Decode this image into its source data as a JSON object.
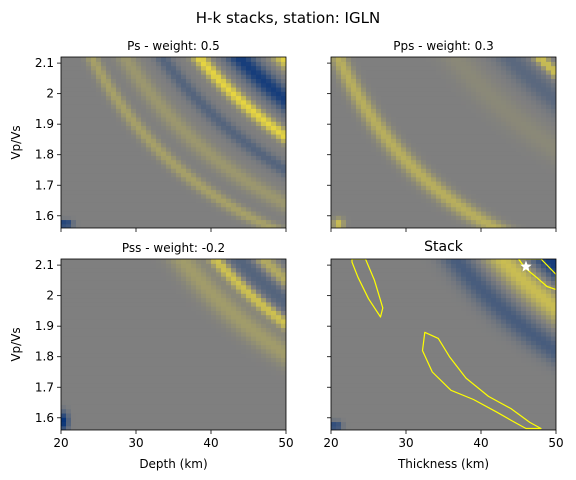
{
  "figure": {
    "title": "H-k stacks, station: IGLN"
  },
  "colors": {
    "low": "#03317a",
    "mid": "#7f7f7f",
    "high": "#f2df3a",
    "contour": "#ffff00",
    "star": "#ffffff"
  },
  "chart_data": [
    {
      "id": "ps",
      "type": "heatmap",
      "title": "Ps - weight: 0.5",
      "xlabel": "",
      "ylabel": "Vp/Vs",
      "xlim": [
        20,
        50
      ],
      "ylim": [
        1.56,
        2.12
      ],
      "xticks": [
        20,
        30,
        40,
        50
      ],
      "yticks": [
        1.6,
        1.7,
        1.8,
        1.9,
        2.0,
        2.1
      ],
      "show_xticklabels": false,
      "show_yticklabels": true,
      "bands": [
        {
          "c": 43.0,
          "w": 1.2,
          "amp": 0.9
        },
        {
          "c": 55.5,
          "w": 1.6,
          "amp": 0.85
        },
        {
          "c": 37.5,
          "w": 1.3,
          "amp": -0.35
        },
        {
          "c": 49.0,
          "w": 2.2,
          "amp": -0.85
        },
        {
          "c": 32.0,
          "w": 1.5,
          "amp": 0.25
        },
        {
          "c": 62.5,
          "w": 2.4,
          "amp": -0.5
        },
        {
          "c": 27.0,
          "w": 1.0,
          "amp": 0.35
        }
      ],
      "spots": [
        {
          "x": 20.6,
          "y": 1.575,
          "rx": 0.9,
          "ry": 0.012,
          "amp": -1.0
        }
      ],
      "contours": [],
      "markers": []
    },
    {
      "id": "pps",
      "type": "heatmap",
      "title": "Pps - weight: 0.3",
      "xlabel": "",
      "ylabel": "",
      "xlim": [
        20,
        50
      ],
      "ylim": [
        1.56,
        2.12
      ],
      "xticks": [
        20,
        30,
        40,
        50
      ],
      "yticks": [
        1.6,
        1.7,
        1.8,
        1.9,
        2.0,
        2.1
      ],
      "show_xticklabels": false,
      "show_yticklabels": false,
      "bands": [
        {
          "c": 53.5,
          "w": 1.1,
          "amp": 0.7
        },
        {
          "c": 49.0,
          "w": 2.5,
          "amp": -0.3
        },
        {
          "c": 59.0,
          "w": 2.5,
          "amp": -0.35
        },
        {
          "c": 41.0,
          "w": 2.5,
          "amp": 0.1
        },
        {
          "c": 66.0,
          "w": 3.0,
          "amp": -0.25
        },
        {
          "c": 23.5,
          "w": 1.2,
          "amp": 0.5
        }
      ],
      "spots": [
        {
          "x": 21.0,
          "y": 1.575,
          "rx": 0.7,
          "ry": 0.018,
          "amp": 0.7
        }
      ],
      "contours": [],
      "markers": []
    },
    {
      "id": "pss",
      "type": "heatmap",
      "title": "Pss - weight: -0.2",
      "xlabel": "Depth (km)",
      "ylabel": "Vp/Vs",
      "xlim": [
        20,
        50
      ],
      "ylim": [
        1.56,
        2.12
      ],
      "xticks": [
        20,
        30,
        40,
        50
      ],
      "yticks": [
        1.6,
        1.7,
        1.8,
        1.9,
        2.0,
        2.1
      ],
      "show_xticklabels": true,
      "show_yticklabels": true,
      "bands": [
        {
          "c": 45.5,
          "w": 1.2,
          "amp": 0.75
        },
        {
          "c": 52.5,
          "w": 1.5,
          "amp": 0.5
        },
        {
          "c": 40.5,
          "w": 2.2,
          "amp": 0.3
        },
        {
          "c": 49.0,
          "w": 2.5,
          "amp": -0.35
        },
        {
          "c": 57.0,
          "w": 2.0,
          "amp": -0.25
        },
        {
          "c": 66.0,
          "w": 1.3,
          "amp": 0.7
        },
        {
          "c": 62.0,
          "w": 2.5,
          "amp": -0.4
        }
      ],
      "spots": [
        {
          "x": 20.4,
          "y": 1.59,
          "rx": 0.6,
          "ry": 0.03,
          "amp": -1.0
        }
      ],
      "contours": [],
      "markers": []
    },
    {
      "id": "stack",
      "type": "heatmap",
      "title": "Stack",
      "xlabel": "Thickness (km)",
      "ylabel": "",
      "xlim": [
        20,
        50
      ],
      "ylim": [
        1.56,
        2.12
      ],
      "xticks": [
        20,
        30,
        40,
        50
      ],
      "yticks": [
        1.6,
        1.7,
        1.8,
        1.9,
        2.0,
        2.1
      ],
      "show_xticklabels": true,
      "show_yticklabels": false,
      "bands": [
        {
          "c": 48.0,
          "w": 2.6,
          "amp": 0.65
        },
        {
          "c": 55.0,
          "w": 2.8,
          "amp": -0.85
        },
        {
          "c": 41.0,
          "w": 2.4,
          "amp": -0.45
        },
        {
          "c": 63.5,
          "w": 2.5,
          "amp": 0.55
        },
        {
          "c": 70.0,
          "w": 3.0,
          "amp": -0.7
        }
      ],
      "spots": [
        {
          "x": 20.6,
          "y": 1.575,
          "rx": 0.8,
          "ry": 0.015,
          "amp": -0.8
        }
      ],
      "contours": [
        [
          [
            22.8,
            2.12
          ],
          [
            24.6,
            2.12
          ],
          [
            25.8,
            2.05
          ],
          [
            26.9,
            1.96
          ],
          [
            26.6,
            1.93
          ],
          [
            25.0,
            1.99
          ],
          [
            23.6,
            2.06
          ],
          [
            22.8,
            2.11
          ]
        ],
        [
          [
            32.5,
            1.88
          ],
          [
            34.3,
            1.86
          ],
          [
            35.8,
            1.8
          ],
          [
            38.0,
            1.73
          ],
          [
            41.0,
            1.67
          ],
          [
            44.0,
            1.63
          ],
          [
            46.5,
            1.585
          ],
          [
            48.0,
            1.565
          ],
          [
            46.0,
            1.565
          ],
          [
            44.5,
            1.585
          ],
          [
            42.0,
            1.62
          ],
          [
            39.0,
            1.66
          ],
          [
            36.0,
            1.69
          ],
          [
            33.5,
            1.75
          ],
          [
            32.2,
            1.82
          ]
        ],
        [
          [
            45.0,
            2.12
          ],
          [
            48.0,
            2.12
          ],
          [
            50.0,
            2.07
          ],
          [
            50.0,
            2.02
          ],
          [
            48.8,
            2.03
          ],
          [
            47.4,
            2.06
          ],
          [
            45.9,
            2.09
          ]
        ]
      ],
      "markers": [
        {
          "x": 46.0,
          "y": 2.095,
          "symbol": "star"
        }
      ]
    }
  ]
}
